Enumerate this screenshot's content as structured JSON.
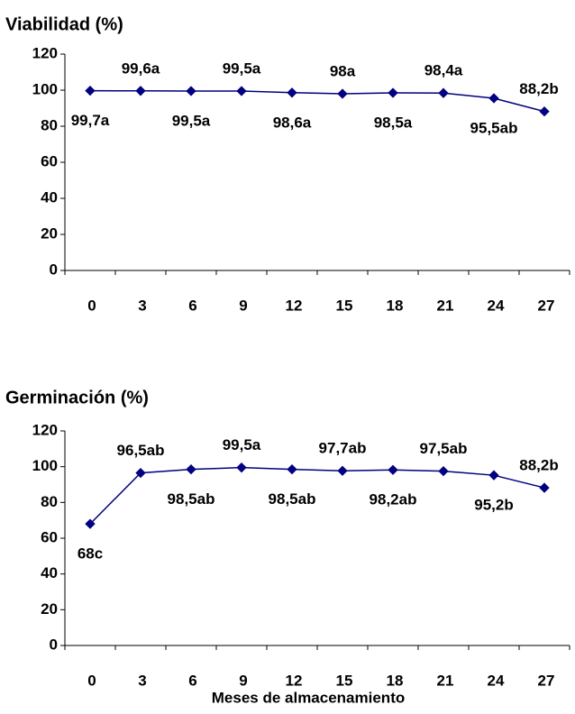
{
  "chart_data": [
    {
      "type": "line",
      "title": "Viabilidad (%)",
      "categories": [
        "0",
        "3",
        "6",
        "9",
        "12",
        "15",
        "18",
        "21",
        "24",
        "27"
      ],
      "values": [
        99.7,
        99.6,
        99.5,
        99.5,
        98.6,
        98,
        98.5,
        98.4,
        95.5,
        88.2
      ],
      "value_labels": [
        "99,7a",
        "99,6a",
        "99,5a",
        "99,5a",
        "98,6a",
        "98a",
        "98,5a",
        "98,4a",
        "95,5ab",
        "88,2b"
      ],
      "color": "#000080",
      "ylim": [
        0,
        120
      ],
      "yticks": [
        0,
        20,
        40,
        60,
        80,
        100,
        120
      ]
    },
    {
      "type": "line",
      "title": "Germinación (%)",
      "x_label": "Meses de almacenamiento",
      "categories": [
        "0",
        "3",
        "6",
        "9",
        "12",
        "15",
        "18",
        "21",
        "24",
        "27"
      ],
      "values": [
        68,
        96.5,
        98.5,
        99.5,
        98.5,
        97.7,
        98.2,
        97.5,
        95.2,
        88.2
      ],
      "value_labels": [
        "68c",
        "96,5ab",
        "98,5ab",
        "99,5a",
        "98,5ab",
        "97,7ab",
        "98,2ab",
        "97,5ab",
        "95,2b",
        "88,2b"
      ],
      "color": "#000080",
      "ylim": [
        0,
        120
      ],
      "yticks": [
        0,
        20,
        40,
        60,
        80,
        100,
        120
      ]
    }
  ]
}
